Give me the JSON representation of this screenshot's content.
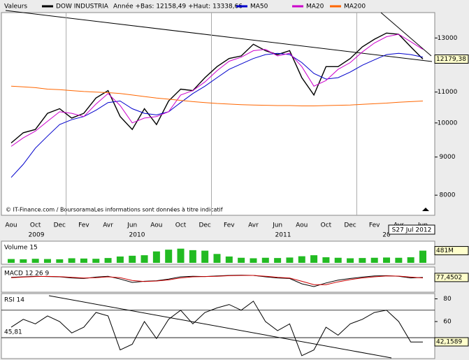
{
  "chart_data": [
    {
      "type": "line",
      "title": "Valeurs",
      "subtitle": "Année +Bas: 12158,49 +Haut: 13338,66",
      "categories": [
        "Aou",
        null,
        "Oct",
        null,
        "Dec",
        null,
        "Fev",
        null,
        "Avr",
        null,
        "Jun",
        null,
        "Aou",
        null,
        "Oct",
        null,
        "Dec",
        null,
        "Fev",
        null,
        "Avr",
        null,
        "Jun",
        null,
        "Aou",
        null,
        "Oct",
        null,
        "Dec",
        null,
        "Fev",
        null,
        "Avr",
        null,
        "Jun"
      ],
      "years": [
        "2009",
        "2010",
        "2011",
        "20"
      ],
      "date_label": "S27 Jul 2012",
      "footnote": "© IT-Finance.com / BoursoramaLes informations sont données à titre indicatif",
      "log_scale": true,
      "ylim": [
        7550,
        14000
      ],
      "yticks": [
        8000,
        9000,
        10000,
        11000,
        13000
      ],
      "last_value": {
        "value": 12179.38,
        "label": "12179,38"
      },
      "series": [
        {
          "name": "DOW INDUSTRIA",
          "color": "#000000",
          "values": [
            9400,
            9700,
            9800,
            10300,
            10450,
            10150,
            10300,
            10800,
            11050,
            10200,
            9800,
            10450,
            9950,
            10700,
            11100,
            11050,
            11500,
            11900,
            12200,
            12300,
            12750,
            12500,
            12350,
            12500,
            11500,
            10900,
            11900,
            11900,
            12200,
            12650,
            12950,
            13200,
            13150,
            12650,
            12180
          ]
        },
        {
          "name": "MA50",
          "color": "#0000cc",
          "values": [
            8450,
            8800,
            9250,
            9600,
            9950,
            10100,
            10200,
            10400,
            10650,
            10700,
            10450,
            10300,
            10250,
            10350,
            10650,
            10950,
            11200,
            11500,
            11800,
            12000,
            12200,
            12350,
            12400,
            12350,
            12050,
            11650,
            11450,
            11500,
            11700,
            11950,
            12150,
            12350,
            12400,
            12350,
            12250
          ]
        },
        {
          "name": "MA20",
          "color": "#cc00cc",
          "values": [
            9300,
            9550,
            9750,
            10050,
            10350,
            10300,
            10200,
            10600,
            10950,
            10550,
            10000,
            10150,
            10200,
            10350,
            10900,
            11050,
            11350,
            11750,
            12100,
            12250,
            12500,
            12550,
            12300,
            12400,
            11900,
            11200,
            11400,
            11800,
            12050,
            12450,
            12800,
            13050,
            13150,
            12850,
            12550
          ]
        },
        {
          "name": "MA200",
          "color": "#ff6600",
          "values": [
            11200,
            11180,
            11150,
            11100,
            11080,
            11050,
            11020,
            11000,
            10980,
            10950,
            10900,
            10850,
            10800,
            10760,
            10720,
            10680,
            10650,
            10620,
            10600,
            10580,
            10570,
            10560,
            10550,
            10550,
            10540,
            10540,
            10550,
            10560,
            10570,
            10590,
            10610,
            10630,
            10660,
            10680,
            10700
          ]
        }
      ]
    },
    {
      "type": "bar",
      "title": "Volume 15",
      "color": "#22bb22",
      "ylim": [
        0,
        800
      ],
      "values": [
        150,
        140,
        160,
        150,
        140,
        180,
        170,
        160,
        190,
        250,
        280,
        300,
        450,
        520,
        560,
        500,
        480,
        350,
        250,
        200,
        180,
        200,
        190,
        210,
        260,
        300,
        220,
        200,
        180,
        190,
        200,
        210,
        200,
        220,
        481
      ],
      "last_value": {
        "value": 481,
        "label": "481M"
      }
    },
    {
      "type": "line",
      "title": "MACD 12 26 9",
      "ylim": [
        -400,
        400
      ],
      "series": [
        {
          "color": "#000000",
          "values": [
            80,
            100,
            120,
            110,
            100,
            60,
            40,
            90,
            120,
            20,
            -100,
            -60,
            -40,
            20,
            100,
            120,
            110,
            130,
            150,
            160,
            150,
            100,
            60,
            40,
            -150,
            -250,
            -120,
            -20,
            40,
            90,
            130,
            140,
            120,
            60,
            77
          ]
        },
        {
          "color": "#cc0000",
          "values": [
            70,
            90,
            110,
            115,
            105,
            80,
            55,
            70,
            100,
            70,
            -30,
            -70,
            -50,
            -10,
            60,
            100,
            110,
            120,
            140,
            150,
            150,
            120,
            80,
            55,
            -60,
            -180,
            -180,
            -80,
            0,
            60,
            100,
            130,
            125,
            90,
            60
          ]
        }
      ],
      "last_value": {
        "value": 77.4502,
        "label": "77,4502"
      }
    },
    {
      "type": "line",
      "title": "RSI 14",
      "ylim": [
        28,
        84
      ],
      "yticks": [
        40,
        60,
        80
      ],
      "hlines": [
        70
      ],
      "marker": {
        "value": 45.81,
        "label": "45,81"
      },
      "series": [
        {
          "color": "#000000",
          "values": [
            55,
            62,
            58,
            65,
            60,
            50,
            55,
            68,
            65,
            35,
            40,
            60,
            45,
            62,
            70,
            58,
            68,
            72,
            75,
            70,
            78,
            60,
            52,
            58,
            30,
            35,
            55,
            48,
            58,
            62,
            68,
            70,
            60,
            42,
            42
          ]
        }
      ],
      "last_value": {
        "value": 42.1589,
        "label": "42,1589"
      }
    }
  ]
}
